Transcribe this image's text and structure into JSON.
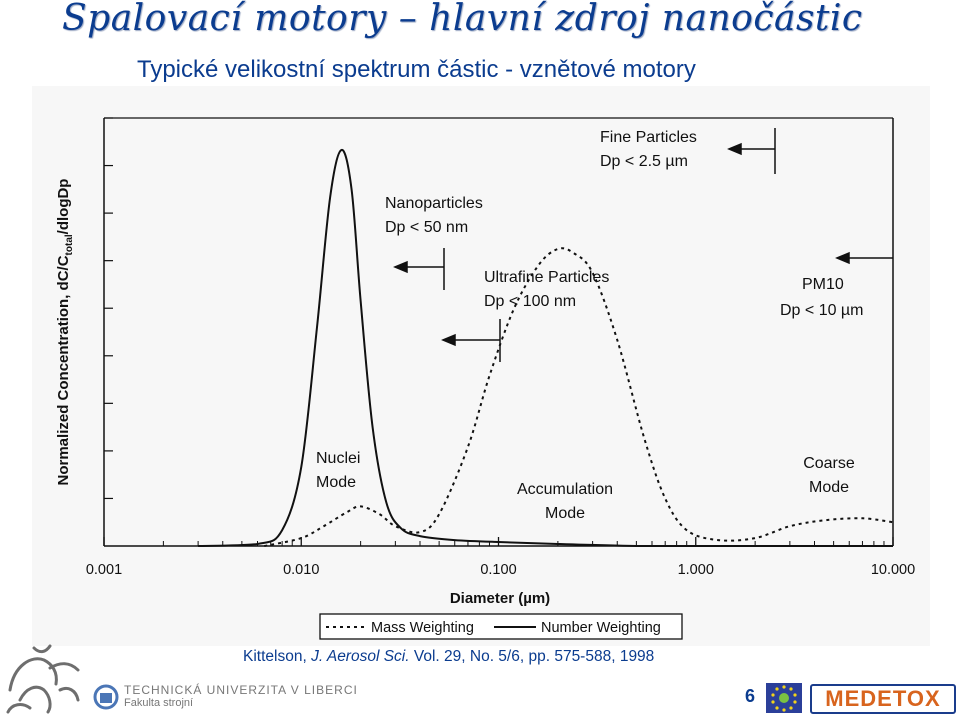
{
  "slide": {
    "title": "Spalovací motory – hlavní zdroj nanočástic",
    "subtitle": "Typické velikostní spektrum částic - vznětové motory",
    "page_number": "6"
  },
  "chart_data": {
    "type": "line",
    "ylabel_main": "Normalized Concentration, dC/C",
    "ylabel_sub": "total",
    "ylabel_tail": "/dlogDp",
    "xlabel": "Diameter (µm)",
    "x_scale": "log",
    "xlim": [
      0.001,
      10.0
    ],
    "x_tick_labels": [
      "0.001",
      "0.010",
      "0.100",
      "1.000",
      "10.000"
    ],
    "x_ticks": [
      0.001,
      0.01,
      0.1,
      1.0,
      10.0
    ],
    "grid": false,
    "legend_position": "bottom",
    "series": [
      {
        "name": "Mass Weighting",
        "style": "dashed",
        "x": [
          0.0065,
          0.01,
          0.013,
          0.017,
          0.02,
          0.025,
          0.03,
          0.04,
          0.05,
          0.07,
          0.09,
          0.12,
          0.16,
          0.2,
          0.24,
          0.3,
          0.4,
          0.55,
          0.7,
          0.9,
          1.3,
          2.0,
          3.0,
          4.5,
          7.0,
          10.0
        ],
        "y": [
          0.0,
          0.02,
          0.05,
          0.085,
          0.1,
          0.08,
          0.05,
          0.035,
          0.08,
          0.25,
          0.43,
          0.6,
          0.71,
          0.75,
          0.74,
          0.69,
          0.52,
          0.27,
          0.12,
          0.04,
          0.015,
          0.02,
          0.05,
          0.065,
          0.07,
          0.06
        ]
      },
      {
        "name": "Number Weighting",
        "style": "solid",
        "x": [
          0.003,
          0.006,
          0.008,
          0.01,
          0.012,
          0.014,
          0.016,
          0.018,
          0.02,
          0.023,
          0.027,
          0.032,
          0.04,
          0.06,
          0.1,
          0.2,
          0.5,
          1.0,
          10.0
        ],
        "y": [
          0.0,
          0.005,
          0.04,
          0.2,
          0.55,
          0.88,
          1.0,
          0.9,
          0.62,
          0.3,
          0.11,
          0.045,
          0.025,
          0.015,
          0.01,
          0.005,
          0.0,
          0.0,
          0.0
        ]
      }
    ],
    "annotations": {
      "fine_particles": [
        "Fine Particles",
        "Dp < 2.5 µm"
      ],
      "nanoparticles": [
        "Nanoparticles",
        "Dp < 50 nm"
      ],
      "ultrafine": [
        "Ultrafine Particles",
        "Dp < 100 nm"
      ],
      "pm10": [
        "PM10",
        "Dp < 10 µm"
      ],
      "nuclei_mode": [
        "Nuclei",
        "Mode"
      ],
      "accumulation_mode": [
        "Accumulation",
        "Mode"
      ],
      "coarse_mode": [
        "Coarse",
        "Mode"
      ]
    },
    "cutoffs_um": {
      "nanoparticles": 0.05,
      "ultrafine": 0.1,
      "fine": 2.5,
      "pm10": 10.0
    }
  },
  "citation": {
    "author": "Kittelson, ",
    "journal": "J. Aerosol Sci.",
    "rest": " Vol. 29, No. 5/6, pp. 575-588, 1998"
  },
  "footer": {
    "university": "TECHNICKÁ UNIVERZITA V LIBERCI",
    "faculty": "Fakulta strojní",
    "brand": "MEDETOX"
  },
  "colors": {
    "title": "#0b3c8f",
    "brand_orange": "#d8641e",
    "figure_bg": "#f7f7f7",
    "ink": "#111111"
  }
}
